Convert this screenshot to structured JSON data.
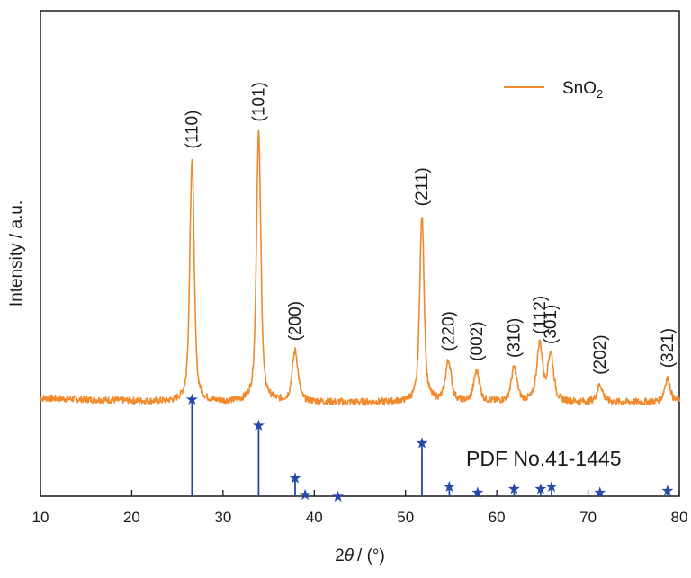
{
  "chart_data": {
    "type": "line",
    "x_label_prefix": "2",
    "x_label_symbol": "θ",
    "x_label_suffix": "/ (°)",
    "ylabel": "Intensity / a.u.",
    "xlim": [
      10,
      80
    ],
    "x_ticks": [
      "10",
      "20",
      "30",
      "40",
      "50",
      "60",
      "70",
      "80"
    ],
    "y_ticks_shown": false,
    "grid": false,
    "legend_position": "top-right",
    "colors": {
      "pattern": "#f08a2c",
      "reference": "#2748a8"
    },
    "series": [
      {
        "name": "SnO",
        "name_subscript": "2",
        "baseline": 0.02,
        "peaks": [
          {
            "x": 26.6,
            "y": 0.72,
            "label": "(110)"
          },
          {
            "x": 33.9,
            "y": 0.8,
            "label": "(101)"
          },
          {
            "x": 37.9,
            "y": 0.15,
            "label": "(200)"
          },
          {
            "x": 51.8,
            "y": 0.55,
            "label": "(211)"
          },
          {
            "x": 54.7,
            "y": 0.12,
            "label": "(220)"
          },
          {
            "x": 57.8,
            "y": 0.09,
            "label": "(002)"
          },
          {
            "x": 61.9,
            "y": 0.1,
            "label": "(310)"
          },
          {
            "x": 64.7,
            "y": 0.17,
            "label": "(112)"
          },
          {
            "x": 65.9,
            "y": 0.14,
            "label": "(301)"
          },
          {
            "x": 71.3,
            "y": 0.05,
            "label": "(202)"
          },
          {
            "x": 78.7,
            "y": 0.07,
            "label": "(321)"
          }
        ]
      }
    ],
    "reference": {
      "name": "PDF No.41-1445",
      "marker": "★",
      "lines": [
        {
          "x": 26.6,
          "y": 100
        },
        {
          "x": 33.9,
          "y": 73
        },
        {
          "x": 37.9,
          "y": 19
        },
        {
          "x": 39.0,
          "y": 2
        },
        {
          "x": 42.6,
          "y": 0
        },
        {
          "x": 51.8,
          "y": 55
        },
        {
          "x": 54.8,
          "y": 10
        },
        {
          "x": 57.9,
          "y": 4
        },
        {
          "x": 61.9,
          "y": 8
        },
        {
          "x": 64.8,
          "y": 8
        },
        {
          "x": 66.0,
          "y": 10
        },
        {
          "x": 71.3,
          "y": 4
        },
        {
          "x": 78.7,
          "y": 6
        }
      ]
    }
  }
}
